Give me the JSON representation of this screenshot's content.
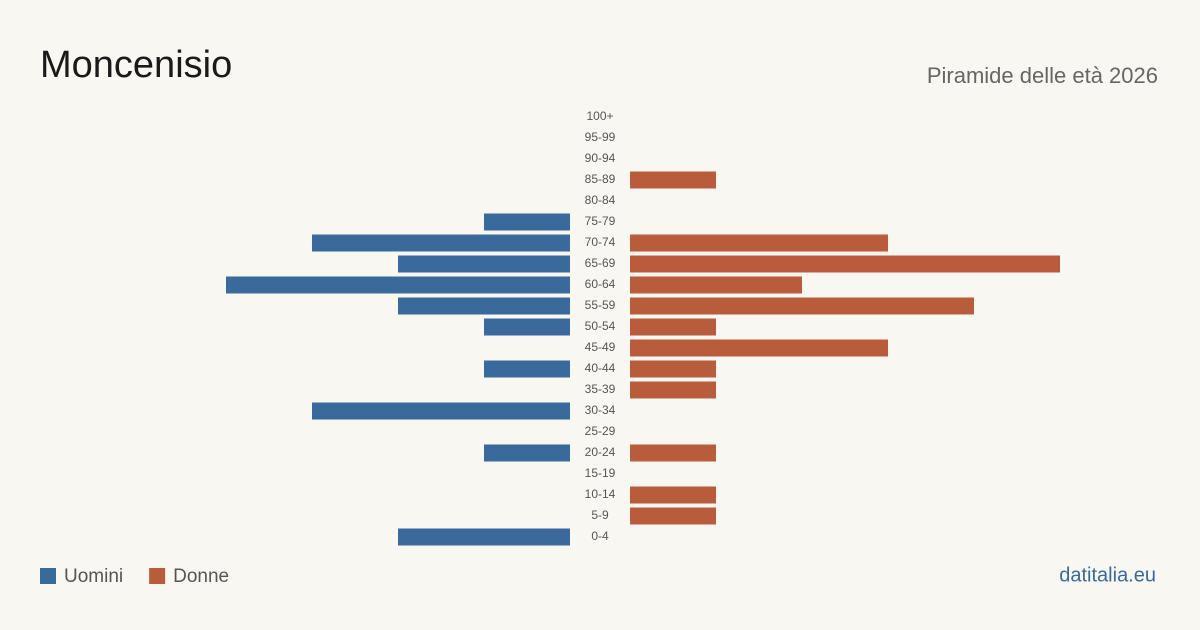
{
  "chart_data": {
    "type": "pyramid",
    "title": "Moncenisio",
    "subtitle": "Piramide delle età 2026",
    "source": "datitalia.eu",
    "categories": [
      "100+",
      "95-99",
      "90-94",
      "85-89",
      "80-84",
      "75-79",
      "70-74",
      "65-69",
      "60-64",
      "55-59",
      "50-54",
      "45-49",
      "40-44",
      "35-39",
      "30-34",
      "25-29",
      "20-24",
      "15-19",
      "10-14",
      "5-9",
      "0-4"
    ],
    "series": [
      {
        "name": "Uomini",
        "color": "#3a6a9c",
        "values": [
          0,
          0,
          0,
          0,
          0,
          1,
          3,
          2,
          4,
          2,
          1,
          0,
          1,
          0,
          3,
          0,
          1,
          0,
          0,
          0,
          2
        ]
      },
      {
        "name": "Donne",
        "color": "#b85c3c",
        "values": [
          0,
          0,
          0,
          1,
          0,
          0,
          3,
          5,
          2,
          4,
          1,
          3,
          1,
          1,
          0,
          0,
          1,
          0,
          1,
          1,
          0
        ]
      }
    ]
  }
}
